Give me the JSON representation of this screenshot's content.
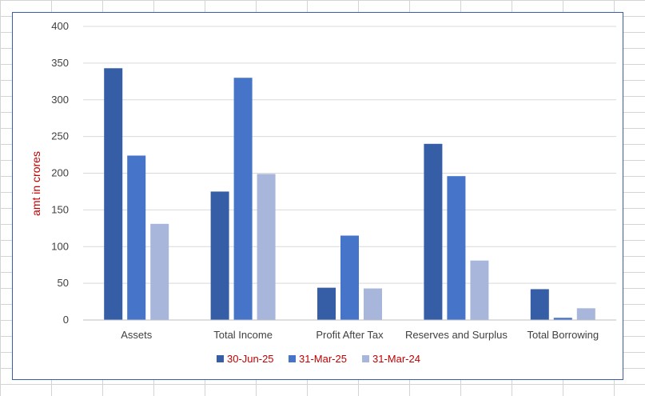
{
  "chart_data": {
    "type": "bar",
    "title": "",
    "xlabel": "",
    "ylabel": "amt in crores",
    "ylim": [
      0,
      400
    ],
    "yticks": [
      0,
      50,
      100,
      150,
      200,
      250,
      300,
      350,
      400
    ],
    "categories": [
      "Assets",
      "Total Income",
      "Profit After Tax",
      "Reserves and Surplus",
      "Total Borrowing"
    ],
    "series": [
      {
        "name": "30-Jun-25",
        "color": "#355ea6",
        "values": [
          343,
          175,
          44,
          240,
          42
        ]
      },
      {
        "name": "31-Mar-25",
        "color": "#4674c8",
        "values": [
          224,
          330,
          115,
          196,
          3
        ]
      },
      {
        "name": "31-Mar-24",
        "color": "#a9b6dc",
        "values": [
          131,
          199,
          43,
          81,
          16
        ]
      }
    ],
    "grid": true,
    "legend_position": "bottom"
  }
}
